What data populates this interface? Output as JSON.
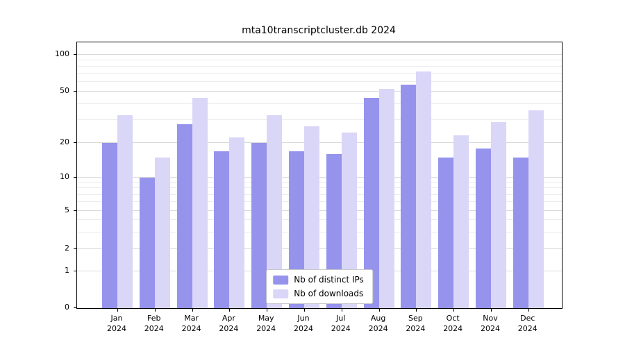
{
  "chart_data": {
    "type": "bar",
    "title": "mta10transcriptcluster.db 2024",
    "categories": [
      "Jan 2024",
      "Feb 2024",
      "Mar 2024",
      "Apr 2024",
      "May 2024",
      "Jun 2024",
      "Jul 2024",
      "Aug 2024",
      "Sep 2024",
      "Oct 2024",
      "Nov 2024",
      "Dec 2024"
    ],
    "series": [
      {
        "name": "Nb of distinct IPs",
        "color": "#9593ec",
        "values": [
          20,
          10,
          28,
          17,
          20,
          17,
          16,
          45,
          57,
          15,
          18,
          15
        ]
      },
      {
        "name": "Nb of downloads",
        "color": "#d9d6f8",
        "values": [
          33,
          15,
          45,
          22,
          33,
          27,
          24,
          53,
          73,
          23,
          29,
          36
        ]
      }
    ],
    "yscale": "log-like",
    "yticks": [
      0,
      1,
      2,
      5,
      10,
      20,
      50,
      100
    ],
    "yticks_minor": [
      3,
      4,
      6,
      7,
      8,
      9,
      30,
      40,
      60,
      70,
      80,
      90
    ],
    "ylim": [
      0,
      126
    ],
    "grid": true,
    "legend_position": "bottom-center",
    "colors": {
      "grid_major": "#d9d9d9",
      "grid_minor": "#ebebeb",
      "axis": "#000000",
      "background": "#ffffff"
    }
  }
}
